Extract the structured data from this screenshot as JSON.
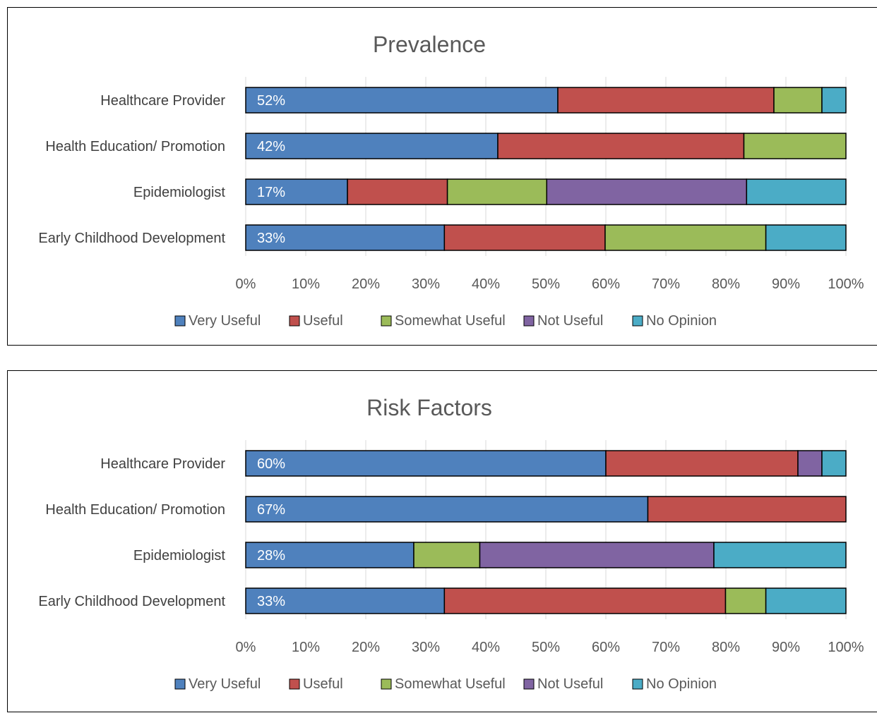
{
  "chart_data": [
    {
      "type": "bar",
      "orientation": "horizontal",
      "stacked": "percent",
      "title": "Prevalence",
      "categories": [
        "Healthcare Provider",
        "Health Education/ Promotion",
        "Epidemiologist",
        "Early Childhood Development"
      ],
      "series": [
        {
          "name": "Very Useful",
          "color": "#4f81bd",
          "values": [
            52,
            42,
            17,
            33
          ]
        },
        {
          "name": "Useful",
          "color": "#c0504d",
          "values": [
            36,
            41,
            16.7,
            26.7
          ]
        },
        {
          "name": "Somewhat Useful",
          "color": "#9bbb59",
          "values": [
            8,
            17,
            16.6,
            26.7
          ]
        },
        {
          "name": "Not Useful",
          "color": "#8064a2",
          "values": [
            0,
            0,
            33.4,
            0
          ]
        },
        {
          "name": "No Opinion",
          "color": "#4bacc6",
          "values": [
            4,
            0,
            16.6,
            13.3
          ]
        }
      ],
      "data_labels": [
        "52%",
        "42%",
        "17%",
        "33%"
      ],
      "xlim": [
        0,
        100
      ],
      "x_ticks": [
        "0%",
        "10%",
        "20%",
        "30%",
        "40%",
        "50%",
        "60%",
        "70%",
        "80%",
        "90%",
        "100%"
      ],
      "grid": true,
      "legend": "bottom"
    },
    {
      "type": "bar",
      "orientation": "horizontal",
      "stacked": "percent",
      "title": "Risk Factors",
      "categories": [
        "Healthcare Provider",
        "Health Education/ Promotion",
        "Epidemiologist",
        "Early Childhood Development"
      ],
      "series": [
        {
          "name": "Very Useful",
          "color": "#4f81bd",
          "values": [
            60,
            67,
            28,
            33
          ]
        },
        {
          "name": "Useful",
          "color": "#c0504d",
          "values": [
            32,
            33,
            0,
            46.7
          ]
        },
        {
          "name": "Somewhat Useful",
          "color": "#9bbb59",
          "values": [
            0,
            0,
            11,
            6.7
          ]
        },
        {
          "name": "Not Useful",
          "color": "#8064a2",
          "values": [
            4,
            0,
            39,
            0
          ]
        },
        {
          "name": "No Opinion",
          "color": "#4bacc6",
          "values": [
            4,
            0,
            22,
            13.3
          ]
        }
      ],
      "data_labels": [
        "60%",
        "67%",
        "28%",
        "33%"
      ],
      "xlim": [
        0,
        100
      ],
      "x_ticks": [
        "0%",
        "10%",
        "20%",
        "30%",
        "40%",
        "50%",
        "60%",
        "70%",
        "80%",
        "90%",
        "100%"
      ],
      "grid": true,
      "legend": "bottom"
    }
  ]
}
